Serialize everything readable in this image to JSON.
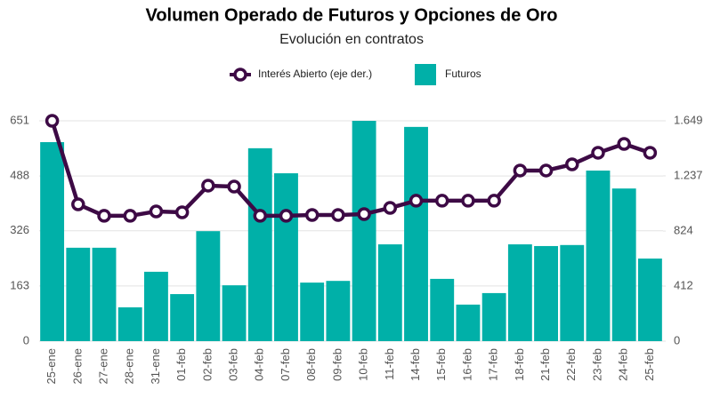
{
  "chart_data": {
    "type": "bar_line",
    "title": "Volumen Operado de Futuros y Opciones de Oro",
    "subtitle": "Evolución en contratos",
    "categories": [
      "25-ene",
      "26-ene",
      "27-ene",
      "28-ene",
      "31-ene",
      "01-feb",
      "02-feb",
      "03-feb",
      "04-feb",
      "07-feb",
      "08-feb",
      "09-feb",
      "10-feb",
      "11-feb",
      "14-feb",
      "15-feb",
      "16-feb",
      "17-feb",
      "18-feb",
      "21-feb",
      "22-feb",
      "23-feb",
      "24-feb",
      "25-feb"
    ],
    "series": [
      {
        "name": "Interés Abierto (eje der.)",
        "type": "line",
        "axis": "y2",
        "color": "#3d0a45",
        "values": [
          1649,
          1024,
          938,
          938,
          971,
          964,
          1164,
          1157,
          938,
          938,
          944,
          944,
          951,
          997,
          1051,
          1051,
          1051,
          1051,
          1277,
          1277,
          1323,
          1410,
          1476,
          1410
        ]
      },
      {
        "name": "Futuros",
        "type": "bar",
        "color": "#00b0a8",
        "values": [
          588,
          276,
          276,
          100,
          205,
          139,
          325,
          165,
          570,
          496,
          173,
          178,
          651,
          286,
          633,
          184,
          108,
          142,
          286,
          281,
          284,
          504,
          451,
          244
        ]
      }
    ],
    "ylim": [
      0,
      651
    ],
    "yticks": [
      0,
      163,
      326,
      488,
      651
    ],
    "y2lim": [
      0,
      1649
    ],
    "y2ticks": [
      0,
      412,
      824,
      {
        "value": 1237,
        "label": "1.237"
      },
      {
        "value": 1649,
        "label": "1.649"
      }
    ],
    "grid": true
  }
}
